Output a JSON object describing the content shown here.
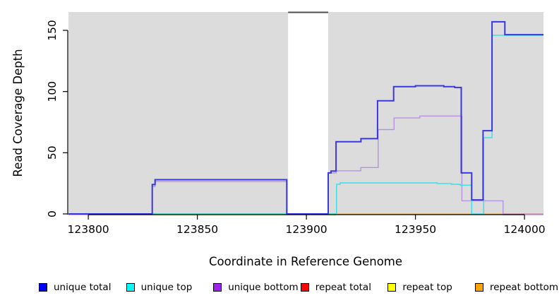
{
  "chart_data": {
    "type": "line",
    "step": true,
    "title": "",
    "xlabel": "Coordinate in Reference Genome",
    "ylabel": "Read Coverage Depth",
    "xlim": [
      123790.9,
      124008.7
    ],
    "ylim": [
      0,
      165
    ],
    "xticks": [
      123800,
      123850,
      123900,
      123950,
      124000
    ],
    "yticks": [
      0,
      50,
      100,
      150
    ],
    "grid": false,
    "panel_bg": "#dcdcdc",
    "axis_color": "#000000",
    "mask_region": {
      "from": 123891.6,
      "to": 123910,
      "fill": "#ffffff",
      "top_border": "#4d4d4d"
    },
    "series": [
      {
        "name": "unique bottom",
        "line_color": "#b493e2",
        "width": 1.4,
        "dy": 1,
        "points": [
          [
            123790.9,
            0
          ],
          [
            123829.3,
            23
          ],
          [
            123830.6,
            27
          ],
          [
            123891,
            0
          ],
          [
            123910,
            34
          ],
          [
            123913.6,
            35.8
          ],
          [
            123924.9,
            38.5
          ],
          [
            123932.9,
            69.5
          ],
          [
            123940.2,
            79
          ],
          [
            123952,
            80.6
          ],
          [
            123971.3,
            11.3
          ],
          [
            123990.2,
            0
          ],
          [
            124008.7,
            0
          ]
        ]
      },
      {
        "name": "unique top",
        "line_color": "#45e0e8",
        "width": 1.6,
        "dy": 0,
        "points": [
          [
            123790.9,
            0
          ],
          [
            123913.8,
            24.2
          ],
          [
            123915.5,
            25.3
          ],
          [
            123960,
            24.8
          ],
          [
            123966.5,
            24.2
          ],
          [
            123970.5,
            23.5
          ],
          [
            123975.8,
            0
          ],
          [
            123981.3,
            62.3
          ],
          [
            123985.1,
            146
          ],
          [
            124008.7,
            146
          ]
        ]
      },
      {
        "name": "unique total",
        "line_color": "#3a36e0",
        "width": 2,
        "dy": 0,
        "points": [
          [
            123790.9,
            0
          ],
          [
            123829.3,
            24
          ],
          [
            123830.6,
            28
          ],
          [
            123891,
            0
          ],
          [
            123910,
            33.5
          ],
          [
            123911.3,
            35
          ],
          [
            123913.6,
            59
          ],
          [
            123925,
            61.5
          ],
          [
            123932.6,
            92.5
          ],
          [
            123940,
            104
          ],
          [
            123950,
            104.7
          ],
          [
            123963,
            104
          ],
          [
            123968,
            103.3
          ],
          [
            123971,
            33.5
          ],
          [
            123975.8,
            11.5
          ],
          [
            123981,
            68
          ],
          [
            123985.1,
            157
          ],
          [
            123991,
            146.5
          ],
          [
            124008.7,
            146.5
          ]
        ]
      }
    ],
    "zero_line_segments": [
      {
        "name": "repeat top visible",
        "color": "#eaea86",
        "from": 123829.3,
        "to": 123891,
        "value": 0,
        "dy": 1.5
      },
      {
        "name": "repeat top visible 2",
        "color": "#eaea86",
        "from": 123910,
        "to": 123913.6,
        "value": 0,
        "dy": 1.5
      },
      {
        "name": "unique top over repeat top blend",
        "color": "#7cc47c",
        "from": 123829.3,
        "to": 123913.6,
        "value": 0,
        "dy": 0
      },
      {
        "name": "repeat bottom visible",
        "color": "#ffa500",
        "from": 123913.6,
        "to": 123990.2,
        "value": 0,
        "dy": 0.5
      },
      {
        "name": "repeat total visible",
        "color": "#d84f86",
        "from": 123990.2,
        "to": 124008.7,
        "value": 0,
        "dy": 0.5
      }
    ],
    "legend": {
      "position": "bottom",
      "items": [
        {
          "label": "unique total",
          "color": "#0000ff"
        },
        {
          "label": "unique top",
          "color": "#00ffff"
        },
        {
          "label": "unique bottom",
          "color": "#a020f0"
        },
        {
          "label": "repeat total",
          "color": "#ff0000"
        },
        {
          "label": "repeat top",
          "color": "#ffff00"
        },
        {
          "label": "repeat bottom",
          "color": "#ffa500"
        }
      ]
    }
  }
}
